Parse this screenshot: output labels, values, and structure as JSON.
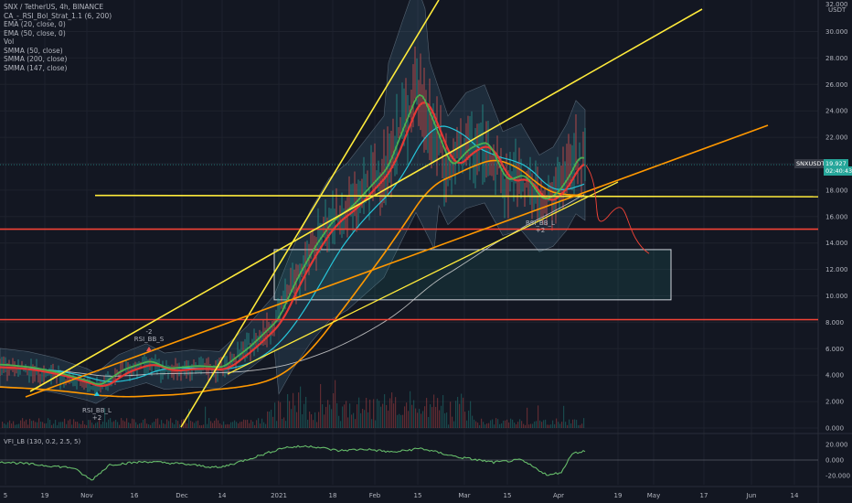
{
  "header": {
    "symbol_line": "SNX / TetherUS, 4h, BINANCE",
    "indicators": [
      "CA_-_RSI_Bol_Strat_1.1 (6, 200)",
      "EMA (20, close, 0)",
      "EMA (50, close, 0)",
      "Vol",
      "SMMA (50, close)",
      "SMMA (200, close)",
      "SMMA (147, close)"
    ]
  },
  "price_axis": {
    "currency": "USDT",
    "top_partial": "32.000",
    "ticks": [
      "30.000",
      "28.000",
      "26.000",
      "24.000",
      "22.000",
      "20.000",
      "18.000",
      "16.000",
      "14.000",
      "12.000",
      "10.000",
      "8.000",
      "6.000",
      "4.000",
      "2.000",
      "0.000"
    ],
    "tick_values": [
      30,
      28,
      26,
      24,
      22,
      20,
      18,
      16,
      14,
      12,
      10,
      8,
      6,
      4,
      2,
      0
    ],
    "symbol_tag": "SNXUSDT",
    "last_price": "19.927",
    "countdown": "02:40:43"
  },
  "time_axis": {
    "labels": [
      "5",
      "19",
      "Nov",
      "16",
      "Dec",
      "14",
      "2021",
      "18",
      "Feb",
      "15",
      "Mar",
      "15",
      "Apr",
      "19",
      "May",
      "17",
      "Jun",
      "14"
    ]
  },
  "annotations": {
    "short_signal": {
      "label": "RSI_BB_S",
      "count": "-2"
    },
    "long_signal_1": {
      "label": "RSI_BB_L",
      "count": "+2"
    },
    "long_signal_2": {
      "label": "RSI_BB_L",
      "count": "+2"
    }
  },
  "vfi_panel": {
    "label": "VFI_LB (130, 0.2, 2.5, 5)",
    "ticks": [
      "20.000",
      "0.000",
      "-20.000"
    ]
  },
  "colors": {
    "background": "#131722",
    "candle_up": "#26a69a",
    "candle_down": "#ef5350",
    "ema20": "#e53935",
    "ema50": "#26c6da",
    "smma50": "#4caf50",
    "smma200": "#ff9800",
    "smma147": "#e0e0e0",
    "trend_yellow": "#ffeb3b",
    "trend_orange": "#ff9800",
    "support_red": "#f44336",
    "vfi_line": "#66bb6a"
  },
  "chart_data": {
    "type": "line",
    "title": "SNX / TetherUS, 4h, BINANCE",
    "x": [
      "Oct 5",
      "Oct 19",
      "Nov 1",
      "Nov 16",
      "Dec 1",
      "Dec 14",
      "Jan 1",
      "Jan 18",
      "Feb 1",
      "Feb 15",
      "Mar 1",
      "Mar 15",
      "Apr 1",
      "Apr 8"
    ],
    "series": [
      {
        "name": "SNX / TetherUS",
        "values": [
          4.6,
          4.3,
          3.2,
          4.8,
          4.6,
          4.9,
          8.5,
          14.5,
          20.0,
          25.0,
          20.5,
          19.0,
          17.5,
          19.927
        ]
      }
    ],
    "ylim": [
      0,
      32
    ],
    "support_levels": [
      18.0,
      15.0,
      8.2
    ],
    "demand_zone": [
      9.7,
      13.5
    ],
    "vfi_ylim": [
      -30,
      30
    ]
  }
}
